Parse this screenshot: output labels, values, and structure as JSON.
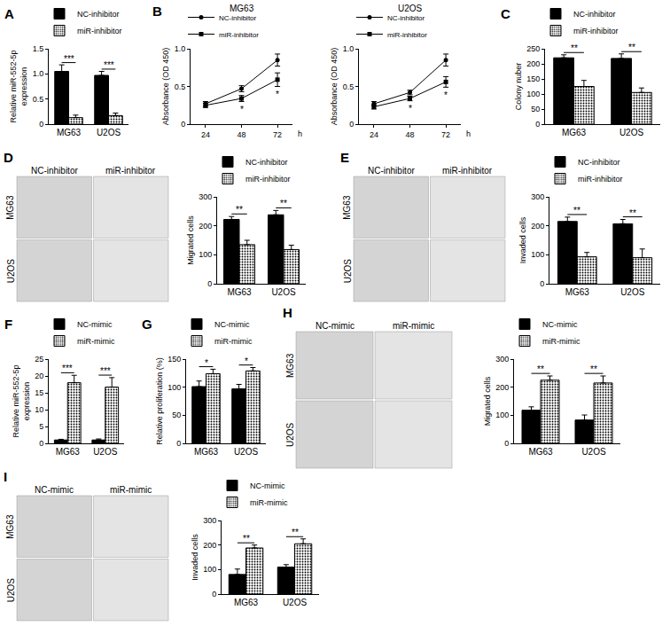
{
  "chart_data": [
    {
      "panel": "A",
      "type": "bar",
      "ylabel": "Relative miR-552-5p expression",
      "categories": [
        "MG63",
        "U2OS"
      ],
      "series": [
        {
          "name": "NC-inhibitor",
          "color": "#000000",
          "values": [
            1.05,
            0.97
          ],
          "errors": [
            0.13,
            0.08
          ]
        },
        {
          "name": "miR-inhibitor",
          "color": "#ffffff",
          "values": [
            0.13,
            0.17
          ],
          "errors": [
            0.05,
            0.05
          ]
        }
      ],
      "ylim": [
        0,
        1.5
      ],
      "yticks": [
        0,
        0.5,
        {
          "value": 1,
          "label": "1.0"
        },
        1.5
      ],
      "annotations": [
        {
          "text": "***",
          "category": "MG63"
        },
        {
          "text": "***",
          "category": "U2OS"
        }
      ]
    },
    {
      "panel": "B",
      "type": "line",
      "title": "MG63",
      "ylabel": "Absorbance (OD 450)",
      "xlabel": "h",
      "x": [
        24,
        48,
        72
      ],
      "series": [
        {
          "name": "NC-inhibitor",
          "color": "#000000",
          "marker": "circle",
          "values": [
            0.27,
            0.47,
            0.85
          ],
          "errors": [
            0.03,
            0.04,
            0.08
          ]
        },
        {
          "name": "miR-inhibitor",
          "color": "#000000",
          "marker": "square",
          "values": [
            0.25,
            0.34,
            0.59
          ],
          "errors": [
            0.03,
            0.04,
            0.09
          ]
        }
      ],
      "xlim": [
        14,
        82
      ],
      "xticks": [
        24,
        48,
        72
      ],
      "ylim": [
        0,
        1
      ],
      "yticks": [
        0,
        0.5,
        {
          "value": 1,
          "label": "1.0"
        }
      ],
      "annotations": [
        {
          "text": "*",
          "x": 48
        },
        {
          "text": "*",
          "x": 72
        }
      ]
    },
    {
      "type": "line",
      "title": "U2OS",
      "ylabel": "Absorbance (OD 450)",
      "xlabel": "h",
      "x": [
        24,
        48,
        72
      ],
      "series": [
        {
          "name": "NC-inhibitor",
          "color": "#000000",
          "marker": "circle",
          "values": [
            0.27,
            0.42,
            0.85
          ],
          "errors": [
            0.03,
            0.03,
            0.08
          ]
        },
        {
          "name": "miR-inhibitor",
          "color": "#000000",
          "marker": "square",
          "values": [
            0.23,
            0.34,
            0.56
          ],
          "errors": [
            0.03,
            0.03,
            0.07
          ]
        }
      ],
      "xlim": [
        14,
        82
      ],
      "xticks": [
        24,
        48,
        72
      ],
      "ylim": [
        0,
        1
      ],
      "yticks": [
        0,
        0.5,
        {
          "value": 1,
          "label": "1.0"
        }
      ],
      "annotations": [
        {
          "text": "*",
          "x": 48
        },
        {
          "text": "*",
          "x": 72
        }
      ]
    },
    {
      "panel": "C",
      "type": "bar",
      "ylabel": "Colony nuber",
      "categories": [
        "MG63",
        "U2OS"
      ],
      "series": [
        {
          "name": "NC-inhibitor",
          "color": "#000000",
          "values": [
            220,
            218
          ],
          "errors": [
            10,
            15
          ]
        },
        {
          "name": "miR-inhibitor",
          "color": "#ffffff",
          "values": [
            125,
            105
          ],
          "errors": [
            20,
            15
          ]
        }
      ],
      "ylim": [
        0,
        250
      ],
      "yticks": [
        0,
        50,
        100,
        150,
        200,
        250
      ],
      "annotations": [
        {
          "text": "**",
          "category": "MG63"
        },
        {
          "text": "**",
          "category": "U2OS"
        }
      ]
    },
    {
      "panel": "D",
      "type": "image_grid",
      "columns": [
        "NC-inhibitor",
        "miR-inhibitor"
      ],
      "rows": [
        "MG63",
        "U2OS"
      ]
    },
    {
      "type": "bar",
      "ylabel": "Migrated cells",
      "categories": [
        "MG63",
        "U2OS"
      ],
      "series": [
        {
          "name": "NC-inhibitor",
          "color": "#000000",
          "values": [
            222,
            238
          ],
          "errors": [
            10,
            15
          ]
        },
        {
          "name": "miR-inhibitor",
          "color": "#ffffff",
          "values": [
            135,
            118
          ],
          "errors": [
            15,
            15
          ]
        }
      ],
      "ylim": [
        0,
        300
      ],
      "yticks": [
        0,
        100,
        200,
        300
      ],
      "annotations": [
        {
          "text": "**",
          "category": "MG63"
        },
        {
          "text": "**",
          "category": "U2OS"
        }
      ]
    },
    {
      "panel": "E",
      "type": "image_grid",
      "columns": [
        "NC-inhibitor",
        "miR-inhibitor"
      ],
      "rows": [
        "MG63",
        "U2OS"
      ]
    },
    {
      "type": "bar",
      "ylabel": "Invaded cells",
      "categories": [
        "MG63",
        "U2OS"
      ],
      "series": [
        {
          "name": "NC-inhibitor",
          "color": "#000000",
          "values": [
            215,
            207
          ],
          "errors": [
            15,
            15
          ]
        },
        {
          "name": "miR-inhibitor",
          "color": "#ffffff",
          "values": [
            93,
            90
          ],
          "errors": [
            15,
            30
          ]
        }
      ],
      "ylim": [
        0,
        300
      ],
      "yticks": [
        0,
        100,
        200,
        300
      ],
      "annotations": [
        {
          "text": "**",
          "category": "MG63"
        },
        {
          "text": "**",
          "category": "U2OS"
        }
      ]
    },
    {
      "panel": "F",
      "type": "bar",
      "ylabel": "Relative miR-552-5p expression",
      "categories": [
        "MG63",
        "U2OS"
      ],
      "series": [
        {
          "name": "NC-mimic",
          "color": "#000000",
          "values": [
            1,
            1
          ],
          "errors": [
            0.2,
            0.3
          ]
        },
        {
          "name": "miR-mimic",
          "color": "#ffffff",
          "values": [
            18,
            16.7
          ],
          "errors": [
            2.2,
            2.8
          ]
        }
      ],
      "ylim": [
        0,
        25
      ],
      "yticks": [
        0,
        5,
        10,
        15,
        20,
        25
      ],
      "annotations": [
        {
          "text": "***",
          "category": "MG63"
        },
        {
          "text": "***",
          "category": "U2OS"
        }
      ]
    },
    {
      "panel": "G",
      "type": "bar",
      "ylabel": "Relative proliferation (%)",
      "categories": [
        "MG63",
        "U2OS"
      ],
      "series": [
        {
          "name": "NC-mimic",
          "color": "#000000",
          "values": [
            101,
            97
          ],
          "errors": [
            10,
            8
          ]
        },
        {
          "name": "miR-mimic",
          "color": "#ffffff",
          "values": [
            124,
            129
          ],
          "errors": [
            8,
            6
          ]
        }
      ],
      "ylim": [
        0,
        150
      ],
      "yticks": [
        0,
        50,
        100,
        150
      ],
      "annotations": [
        {
          "text": "*",
          "category": "MG63"
        },
        {
          "text": "*",
          "category": "U2OS"
        }
      ]
    },
    {
      "panel": "H",
      "type": "image_grid",
      "columns": [
        "NC-mimic",
        "miR-mimic"
      ],
      "rows": [
        "MG63",
        "U2OS"
      ]
    },
    {
      "type": "bar",
      "ylabel": "Migrated cells",
      "categories": [
        "MG63",
        "U2OS"
      ],
      "series": [
        {
          "name": "NC-mimic",
          "color": "#000000",
          "values": [
            118,
            83
          ],
          "errors": [
            12,
            18
          ]
        },
        {
          "name": "miR-mimic",
          "color": "#ffffff",
          "values": [
            225,
            215
          ],
          "errors": [
            15,
            25
          ]
        }
      ],
      "ylim": [
        0,
        300
      ],
      "yticks": [
        0,
        100,
        200,
        300
      ],
      "annotations": [
        {
          "text": "**",
          "category": "MG63"
        },
        {
          "text": "**",
          "category": "U2OS"
        }
      ]
    },
    {
      "panel": "I",
      "type": "image_grid",
      "columns": [
        "NC-mimic",
        "miR-mimic"
      ],
      "rows": [
        "MG63",
        "U2OS"
      ]
    },
    {
      "type": "bar",
      "ylabel": "Invaded cells",
      "categories": [
        "MG63",
        "U2OS"
      ],
      "series": [
        {
          "name": "NC-mimic",
          "color": "#000000",
          "values": [
            80,
            110
          ],
          "errors": [
            22,
            10
          ]
        },
        {
          "name": "miR-mimic",
          "color": "#ffffff",
          "values": [
            188,
            205
          ],
          "errors": [
            12,
            20
          ]
        }
      ],
      "ylim": [
        0,
        300
      ],
      "yticks": [
        0,
        100,
        200,
        300
      ],
      "annotations": [
        {
          "text": "**",
          "category": "MG63"
        },
        {
          "text": "**",
          "category": "U2OS"
        }
      ]
    }
  ]
}
